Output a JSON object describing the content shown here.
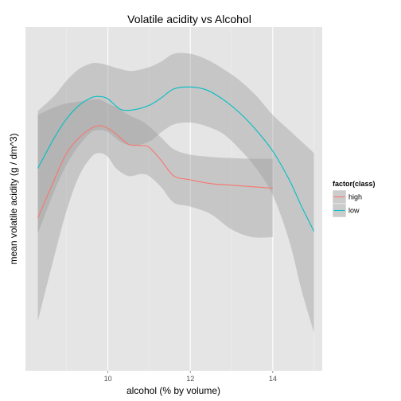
{
  "chart_data": {
    "type": "line",
    "title": "Volatile acidity vs Alcohol",
    "xlabel": "alcohol (% by volume)",
    "ylabel": "mean volatile acidity (g / dm^3)",
    "xlim": [
      8.0,
      15.2
    ],
    "ylim": [
      0.1,
      1.0
    ],
    "x_ticks": [
      10,
      12,
      14
    ],
    "x_minor_ticks": [
      9,
      11,
      13,
      15
    ],
    "y_ticks": [],
    "grid": true,
    "smoothing_band": true,
    "legend": {
      "title": "factor(class)",
      "placement": "right",
      "entries": [
        "high",
        "low"
      ]
    },
    "series": [
      {
        "name": "high",
        "color": "#F8766D",
        "x": [
          8.3,
          8.7,
          9.0,
          9.3,
          9.6,
          9.8,
          10.0,
          10.2,
          10.5,
          10.8,
          11.0,
          11.3,
          11.6,
          12.0,
          12.5,
          13.0,
          13.5,
          14.0
        ],
        "y": [
          0.5,
          0.6,
          0.67,
          0.71,
          0.735,
          0.742,
          0.735,
          0.72,
          0.693,
          0.69,
          0.685,
          0.65,
          0.61,
          0.6,
          0.59,
          0.586,
          0.582,
          0.578
        ],
        "band_upper": [
          0.77,
          0.79,
          0.8,
          0.805,
          0.81,
          0.81,
          0.8,
          0.79,
          0.77,
          0.755,
          0.74,
          0.71,
          0.68,
          0.666,
          0.66,
          0.657,
          0.655,
          0.655
        ],
        "band_lower": [
          0.23,
          0.4,
          0.52,
          0.61,
          0.66,
          0.67,
          0.66,
          0.63,
          0.61,
          0.615,
          0.61,
          0.58,
          0.54,
          0.53,
          0.51,
          0.47,
          0.45,
          0.45
        ]
      },
      {
        "name": "low",
        "color": "#00BFC4",
        "x": [
          8.3,
          8.7,
          9.0,
          9.3,
          9.6,
          9.8,
          10.0,
          10.3,
          10.6,
          11.0,
          11.3,
          11.6,
          12.0,
          12.4,
          12.8,
          13.2,
          13.6,
          14.0,
          14.4,
          14.7,
          15.0
        ],
        "y": [
          0.63,
          0.71,
          0.76,
          0.795,
          0.815,
          0.818,
          0.812,
          0.785,
          0.783,
          0.795,
          0.815,
          0.838,
          0.843,
          0.835,
          0.81,
          0.775,
          0.73,
          0.675,
          0.6,
          0.53,
          0.465
        ],
        "band_upper": [
          0.78,
          0.82,
          0.86,
          0.89,
          0.905,
          0.905,
          0.9,
          0.89,
          0.885,
          0.895,
          0.91,
          0.93,
          0.93,
          0.915,
          0.89,
          0.86,
          0.82,
          0.77,
          0.73,
          0.7,
          0.67
        ],
        "band_lower": [
          0.46,
          0.57,
          0.64,
          0.69,
          0.725,
          0.73,
          0.725,
          0.7,
          0.69,
          0.7,
          0.725,
          0.745,
          0.75,
          0.74,
          0.72,
          0.68,
          0.63,
          0.56,
          0.44,
          0.31,
          0.2
        ]
      }
    ]
  }
}
